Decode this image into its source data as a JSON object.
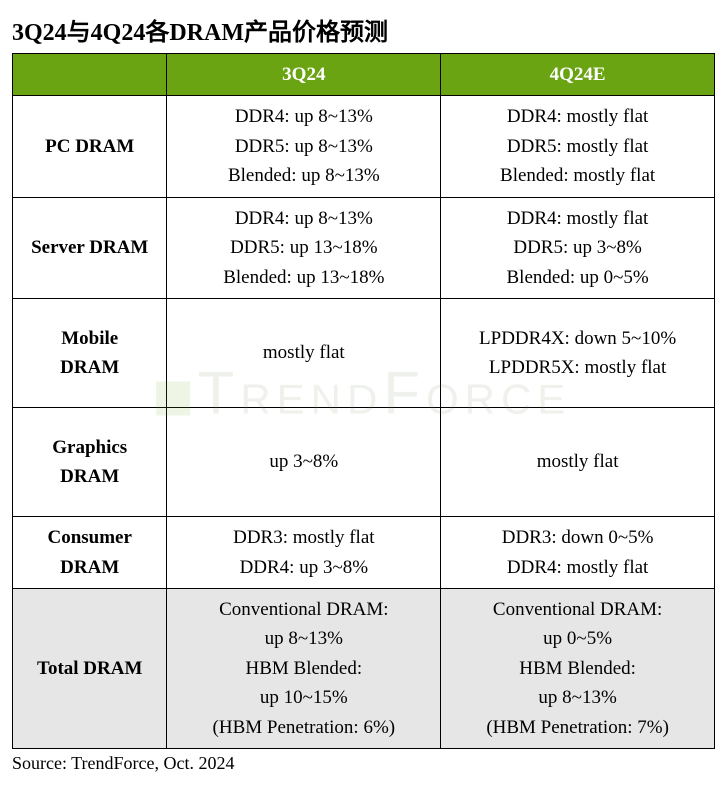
{
  "title": "3Q24与4Q24各DRAM产品价格预测",
  "watermark": "TrendForce",
  "header_bg": "#6aa412",
  "header_fg": "#ffffff",
  "total_bg": "#e6e6e6",
  "columns": [
    "",
    "3Q24",
    "4Q24E"
  ],
  "rows": [
    {
      "label": "PC DRAM",
      "q3": [
        "DDR4: up 8~13%",
        "DDR5: up 8~13%",
        "Blended: up 8~13%"
      ],
      "q4": [
        "DDR4: mostly flat",
        "DDR5: mostly flat",
        "Blended: mostly flat"
      ]
    },
    {
      "label": "Server DRAM",
      "q3": [
        "DDR4: up 8~13%",
        "DDR5: up 13~18%",
        "Blended: up 13~18%"
      ],
      "q4": [
        "DDR4: mostly flat",
        "DDR5: up 3~8%",
        "Blended: up 0~5%"
      ]
    },
    {
      "label": "Mobile DRAM",
      "label_stack": [
        "Mobile",
        "DRAM"
      ],
      "q3": [
        "mostly flat"
      ],
      "q4": [
        "LPDDR4X: down 5~10%",
        "LPDDR5X: mostly flat"
      ],
      "tall": true
    },
    {
      "label": "Graphics DRAM",
      "label_stack": [
        "Graphics",
        "DRAM"
      ],
      "q3": [
        "up 3~8%"
      ],
      "q4": [
        "mostly flat"
      ],
      "tall": true
    },
    {
      "label": "Consumer DRAM",
      "label_stack": [
        "Consumer",
        "DRAM"
      ],
      "q3": [
        "DDR3: mostly flat",
        "DDR4: up 3~8%"
      ],
      "q4": [
        "DDR3: down 0~5%",
        "DDR4: mostly flat"
      ]
    },
    {
      "label": "Total DRAM",
      "q3": [
        "Conventional DRAM:",
        "up 8~13%",
        "HBM Blended:",
        "up 10~15%",
        "(HBM Penetration: 6%)"
      ],
      "q4": [
        "Conventional DRAM:",
        "up 0~5%",
        "HBM Blended:",
        "up 8~13%",
        "(HBM Penetration: 7%)"
      ],
      "total": true
    }
  ],
  "source": "Source: TrendForce, Oct. 2024"
}
